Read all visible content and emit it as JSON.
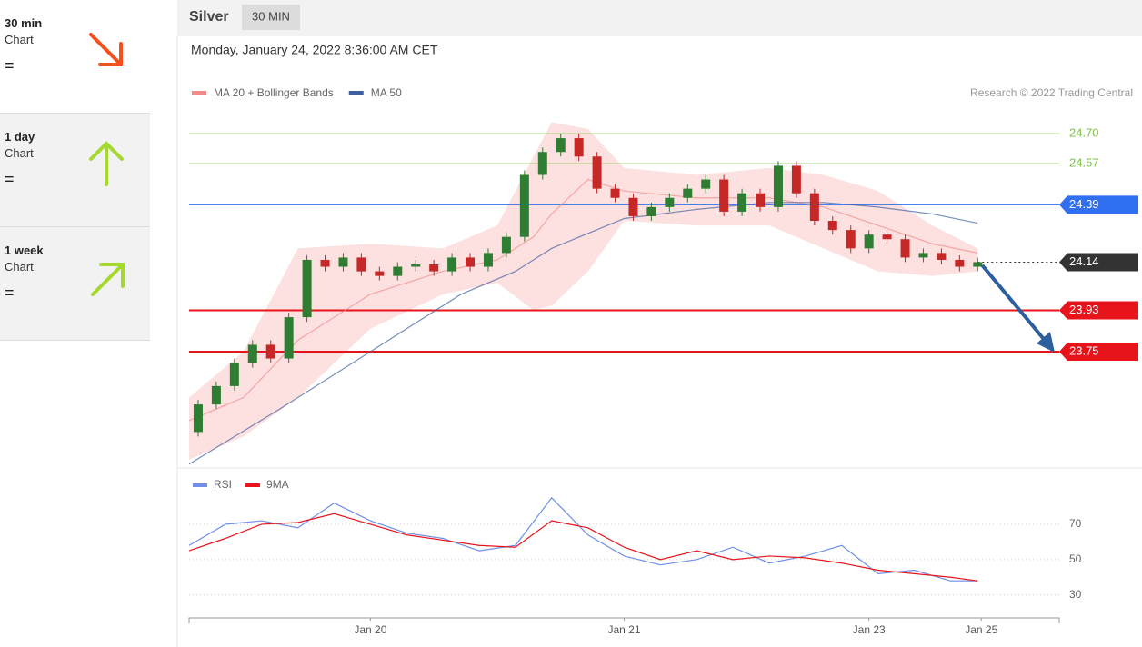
{
  "sidebar": [
    {
      "period": "30 min",
      "label": "Chart",
      "status": "=",
      "direction": "down-right",
      "color": "#f4511e"
    },
    {
      "period": "1 day",
      "label": "Chart",
      "status": "=",
      "direction": "up",
      "color": "#a6d930"
    },
    {
      "period": "1 week",
      "label": "Chart",
      "status": "=",
      "direction": "up-right",
      "color": "#a6d930"
    }
  ],
  "chart_data": {
    "type": "candlestick",
    "title": "Silver",
    "timeframe": "30 MIN",
    "subtitle": "Monday, January 24, 2022 8:36:00 AM CET",
    "source": "Research © 2022 Trading Central",
    "xlim": [
      0,
      48
    ],
    "xticks": [
      {
        "value": 10,
        "label": "Jan 20"
      },
      {
        "value": 24,
        "label": "Jan 21"
      },
      {
        "value": 37.5,
        "label": "Jan 23"
      },
      {
        "value": 43.7,
        "label": "Jan 25"
      }
    ],
    "ylim": [
      23.263,
      24.807
    ],
    "x": [
      0.5,
      1.5,
      2.5,
      3.5,
      4.5,
      5.5,
      6.5,
      7.5,
      8.5,
      9.5,
      10.5,
      11.5,
      12.5,
      13.5,
      14.5,
      15.5,
      16.5,
      17.5,
      18.5,
      19.5,
      20.5,
      21.5,
      22.5,
      23.5,
      24.5,
      25.5,
      26.5,
      27.5,
      28.5,
      29.5,
      30.5,
      31.5,
      32.5,
      33.5,
      34.5,
      35.5,
      36.5,
      37.5,
      38.5,
      39.5,
      40.5,
      41.5,
      42.5,
      43.5
    ],
    "open": [
      23.4,
      23.52,
      23.6,
      23.7,
      23.78,
      23.72,
      23.9,
      24.15,
      24.12,
      24.16,
      24.1,
      24.08,
      24.12,
      24.13,
      24.1,
      24.16,
      24.12,
      24.18,
      24.25,
      24.52,
      24.62,
      24.68,
      24.6,
      24.46,
      24.42,
      24.34,
      24.38,
      24.42,
      24.46,
      24.5,
      24.36,
      24.44,
      24.38,
      24.56,
      24.44,
      24.32,
      24.28,
      24.2,
      24.26,
      24.24,
      24.16,
      24.18,
      24.15,
      24.12
    ],
    "close": [
      23.52,
      23.6,
      23.7,
      23.78,
      23.72,
      23.9,
      24.15,
      24.12,
      24.16,
      24.1,
      24.08,
      24.12,
      24.13,
      24.1,
      24.16,
      24.12,
      24.18,
      24.25,
      24.52,
      24.62,
      24.68,
      24.6,
      24.46,
      24.42,
      24.34,
      24.38,
      24.42,
      24.46,
      24.5,
      24.36,
      24.44,
      24.38,
      24.56,
      24.44,
      24.32,
      24.28,
      24.2,
      24.26,
      24.24,
      24.16,
      24.18,
      24.15,
      24.12,
      24.14
    ],
    "up_color": "#2e7d32",
    "down_color": "#c62828",
    "series": [
      {
        "name": "MA 20 + Bollinger Bands",
        "color": "#f28b8b",
        "band_color": "#fde0e0",
        "x": [
          0,
          3,
          6,
          10,
          14,
          17,
          19,
          20,
          22,
          24,
          28,
          32,
          35,
          38,
          41,
          43.5
        ],
        "values": [
          23.45,
          23.55,
          23.8,
          24.0,
          24.1,
          24.15,
          24.25,
          24.35,
          24.5,
          24.45,
          24.42,
          24.42,
          24.38,
          24.3,
          24.22,
          24.18
        ],
        "upper": [
          23.55,
          23.75,
          24.2,
          24.22,
          24.2,
          24.3,
          24.6,
          24.75,
          24.72,
          24.55,
          24.52,
          24.55,
          24.52,
          24.45,
          24.3,
          24.2
        ],
        "lower": [
          23.28,
          23.38,
          23.55,
          23.85,
          24.0,
          24.05,
          23.93,
          23.95,
          24.1,
          24.32,
          24.3,
          24.3,
          24.2,
          24.1,
          24.08,
          24.1
        ]
      },
      {
        "name": "MA 50",
        "color": "#3f5fa0",
        "x": [
          0,
          5,
          10,
          15,
          18,
          20,
          24,
          28,
          32,
          35,
          38,
          41,
          43.5
        ],
        "values": [
          23.26,
          23.5,
          23.75,
          24.0,
          24.1,
          24.2,
          24.33,
          24.37,
          24.4,
          24.4,
          24.38,
          24.35,
          24.31
        ]
      }
    ],
    "levels": [
      {
        "value": 24.7,
        "label": "24.70",
        "color": "#7cc242",
        "tagged": false,
        "dashed": false
      },
      {
        "value": 24.57,
        "label": "24.57",
        "color": "#7cc242",
        "tagged": false,
        "dashed": false
      },
      {
        "value": 24.39,
        "label": "24.39",
        "color": "#2f6ff0",
        "tagged": true,
        "dashed": false
      },
      {
        "value": 24.14,
        "label": "24.14",
        "color": "#333333",
        "tagged": true,
        "dashed": true
      },
      {
        "value": 23.93,
        "label": "23.93",
        "color": "#e8141b",
        "tagged": true,
        "dashed": false
      },
      {
        "value": 23.75,
        "label": "23.75",
        "color": "#e8141b",
        "tagged": true,
        "dashed": false
      }
    ],
    "rsi": {
      "ylim": [
        17,
        89
      ],
      "yticks": [
        30,
        50,
        70
      ],
      "x": [
        0,
        2,
        4,
        6,
        8,
        10,
        12,
        14,
        16,
        18,
        20,
        22,
        24,
        26,
        28,
        30,
        32,
        34,
        36,
        38,
        40,
        42,
        43.5
      ],
      "series": [
        {
          "name": "RSI",
          "color": "#6f8fe8",
          "values": [
            58,
            70,
            72,
            68,
            82,
            72,
            65,
            62,
            55,
            58,
            85,
            64,
            52,
            47,
            50,
            57,
            48,
            52,
            58,
            42,
            44,
            38,
            38
          ]
        },
        {
          "name": "9MA",
          "color": "#e8141b",
          "values": [
            55,
            62,
            70,
            71,
            76,
            70,
            64,
            61,
            58,
            57,
            72,
            68,
            57,
            50,
            55,
            50,
            52,
            51,
            48,
            44,
            42,
            40,
            38
          ]
        }
      ]
    }
  }
}
